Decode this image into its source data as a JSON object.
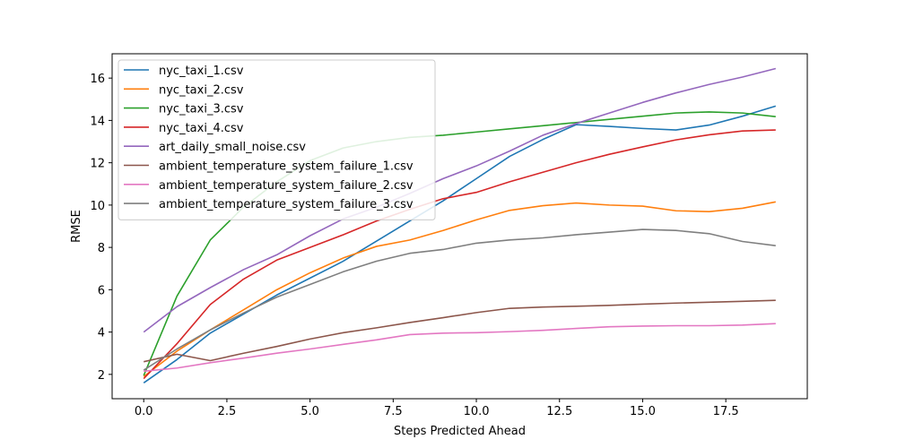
{
  "chart_data": {
    "type": "line",
    "title": "",
    "xlabel": "Steps Predicted Ahead",
    "ylabel": "RMSE",
    "xlim": [
      -0.95,
      19.95
    ],
    "ylim": [
      0.85,
      17.15
    ],
    "xticks": [
      0.0,
      2.5,
      5.0,
      7.5,
      10.0,
      12.5,
      15.0,
      17.5
    ],
    "xtick_labels": [
      "0.0",
      "2.5",
      "5.0",
      "7.5",
      "10.0",
      "12.5",
      "15.0",
      "17.5"
    ],
    "yticks": [
      2,
      4,
      6,
      8,
      10,
      12,
      14,
      16
    ],
    "ytick_labels": [
      "2",
      "4",
      "6",
      "8",
      "10",
      "12",
      "14",
      "16"
    ],
    "grid": false,
    "legend_position": "top-left",
    "x": [
      0,
      1,
      2,
      3,
      4,
      5,
      6,
      7,
      8,
      9,
      10,
      11,
      12,
      13,
      14,
      15,
      16,
      17,
      18,
      19
    ],
    "series": [
      {
        "name": "nyc_taxi_1.csv",
        "color": "#1f77b4",
        "values": [
          1.6,
          2.7,
          3.95,
          4.85,
          5.75,
          6.55,
          7.35,
          8.3,
          9.25,
          10.2,
          11.25,
          12.3,
          13.1,
          13.8,
          13.72,
          13.62,
          13.55,
          13.78,
          14.2,
          14.68
        ]
      },
      {
        "name": "nyc_taxi_2.csv",
        "color": "#ff7f0e",
        "values": [
          1.9,
          3.1,
          4.1,
          5.05,
          6.0,
          6.8,
          7.5,
          8.05,
          8.35,
          8.8,
          9.3,
          9.75,
          9.97,
          10.1,
          10.0,
          9.95,
          9.73,
          9.69,
          9.85,
          10.15
        ]
      },
      {
        "name": "nyc_taxi_3.csv",
        "color": "#2ca02c",
        "values": [
          1.95,
          5.7,
          8.35,
          9.9,
          11.1,
          12.1,
          12.7,
          13.0,
          13.2,
          13.3,
          13.45,
          13.6,
          13.75,
          13.9,
          14.05,
          14.2,
          14.35,
          14.4,
          14.35,
          14.18
        ]
      },
      {
        "name": "nyc_taxi_4.csv",
        "color": "#d62728",
        "values": [
          1.8,
          3.45,
          5.3,
          6.5,
          7.4,
          8.0,
          8.6,
          9.25,
          9.8,
          10.3,
          10.6,
          11.1,
          11.55,
          12.0,
          12.4,
          12.75,
          13.08,
          13.32,
          13.5,
          13.55
        ]
      },
      {
        "name": "art_daily_small_noise.csv",
        "color": "#9467bd",
        "values": [
          4.0,
          5.2,
          6.1,
          6.95,
          7.65,
          8.55,
          9.35,
          9.9,
          10.55,
          11.25,
          11.85,
          12.55,
          13.3,
          13.85,
          14.35,
          14.85,
          15.3,
          15.7,
          16.05,
          16.45
        ]
      },
      {
        "name": "ambient_temperature_system_failure_1.csv",
        "color": "#8c564b",
        "values": [
          2.6,
          2.95,
          2.65,
          3.0,
          3.32,
          3.67,
          3.97,
          4.2,
          4.45,
          4.68,
          4.92,
          5.12,
          5.18,
          5.22,
          5.26,
          5.32,
          5.37,
          5.41,
          5.45,
          5.5
        ]
      },
      {
        "name": "ambient_temperature_system_failure_2.csv",
        "color": "#e377c2",
        "values": [
          2.15,
          2.3,
          2.55,
          2.77,
          3.0,
          3.2,
          3.42,
          3.63,
          3.88,
          3.95,
          3.97,
          4.02,
          4.08,
          4.17,
          4.25,
          4.28,
          4.3,
          4.3,
          4.33,
          4.4
        ]
      },
      {
        "name": "ambient_temperature_system_failure_3.csv",
        "color": "#7f7f7f",
        "values": [
          2.2,
          3.2,
          4.1,
          4.9,
          5.65,
          6.25,
          6.85,
          7.35,
          7.72,
          7.9,
          8.2,
          8.35,
          8.45,
          8.6,
          8.72,
          8.85,
          8.8,
          8.65,
          8.28,
          8.08
        ]
      }
    ]
  }
}
